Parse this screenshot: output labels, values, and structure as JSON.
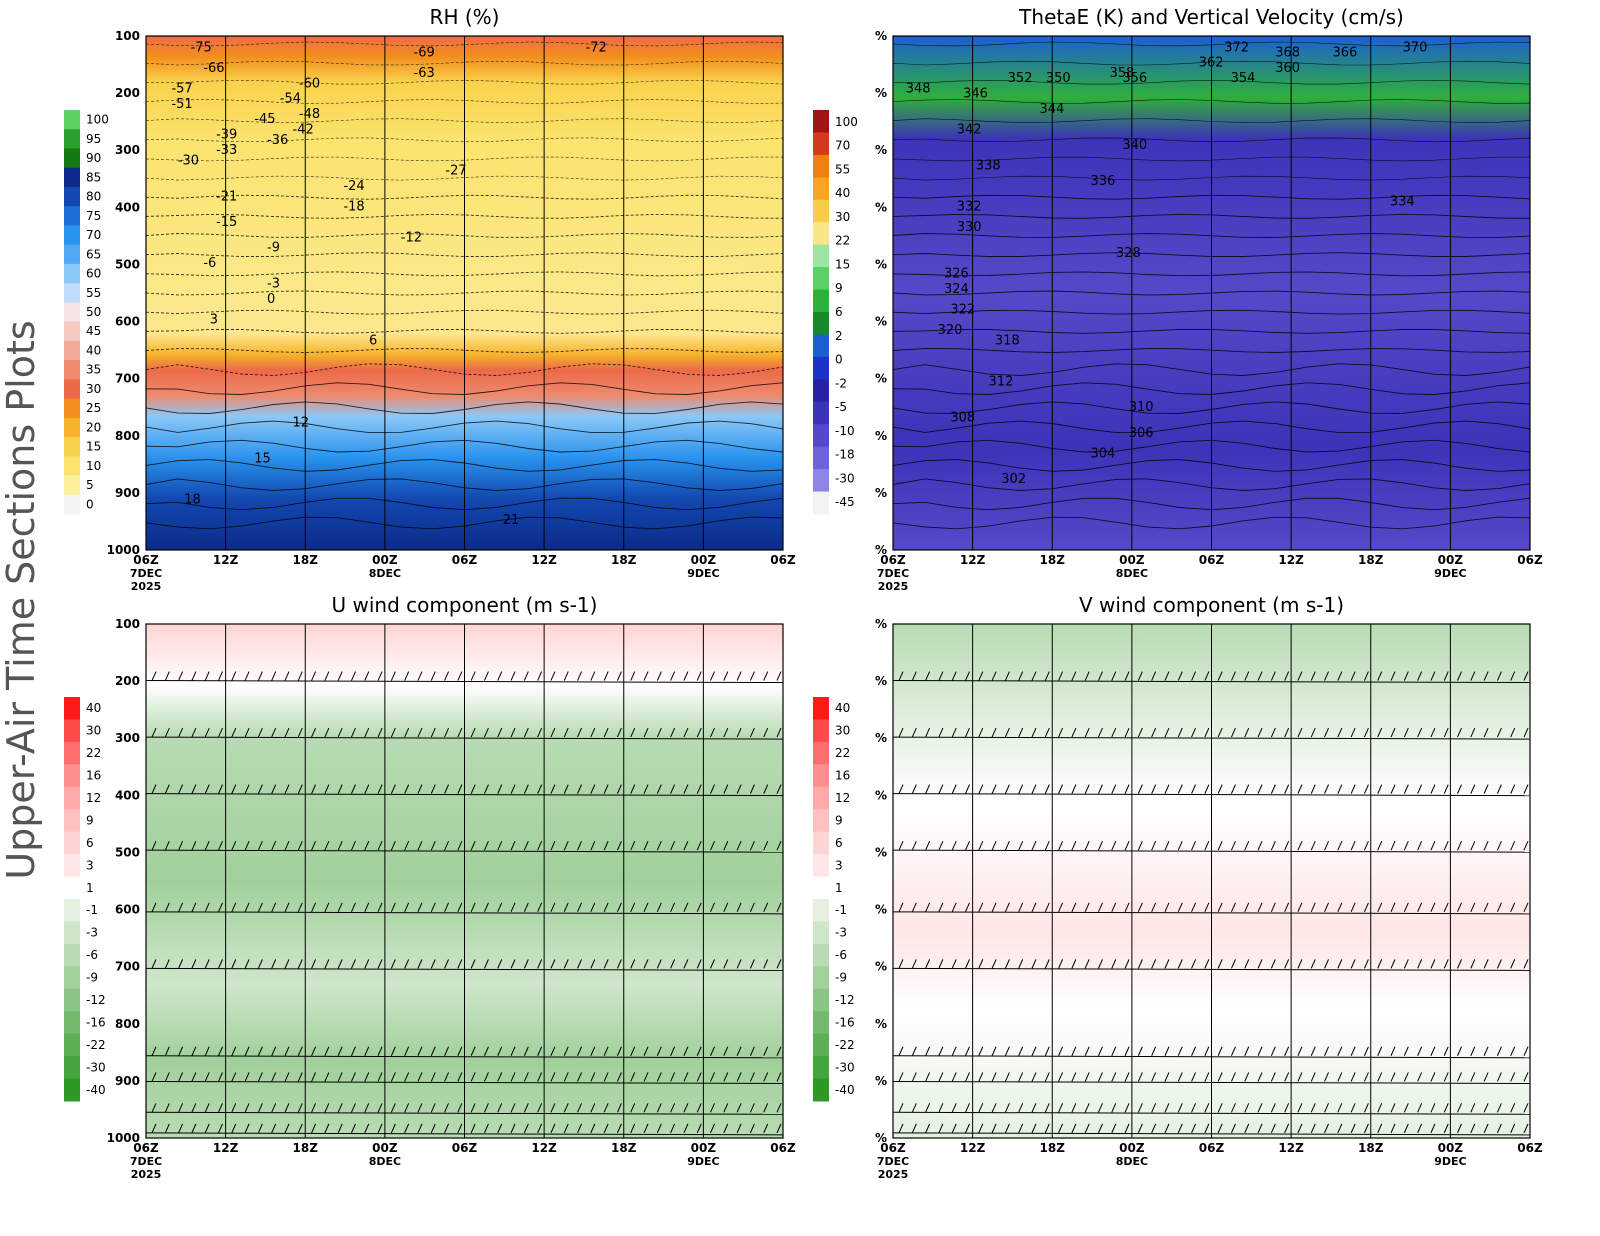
{
  "side_title": "Upper-Air Time Sections Plots",
  "chart_data": [
    {
      "type": "heatmap",
      "title": "RH (%)",
      "yticks": [
        "100",
        "200",
        "300",
        "400",
        "500",
        "600",
        "700",
        "800",
        "900",
        "1000"
      ],
      "x_ticks": [
        {
          "label": "06Z",
          "sub1": "7DEC",
          "sub2": "2025"
        },
        {
          "label": "12Z",
          "sub1": "",
          "sub2": ""
        },
        {
          "label": "18Z",
          "sub1": "",
          "sub2": ""
        },
        {
          "label": "00Z",
          "sub1": "8DEC",
          "sub2": ""
        },
        {
          "label": "06Z",
          "sub1": "",
          "sub2": ""
        },
        {
          "label": "12Z",
          "sub1": "",
          "sub2": ""
        },
        {
          "label": "18Z",
          "sub1": "",
          "sub2": ""
        },
        {
          "label": "00Z",
          "sub1": "9DEC",
          "sub2": ""
        },
        {
          "label": "06Z",
          "sub1": "",
          "sub2": ""
        }
      ],
      "colorbar_labels": [
        "100",
        "95",
        "90",
        "85",
        "80",
        "75",
        "70",
        "65",
        "60",
        "55",
        "50",
        "45",
        "40",
        "35",
        "30",
        "25",
        "20",
        "15",
        "10",
        "5",
        "0"
      ],
      "colorbar_colors": [
        "#5fd35f",
        "#2ca02c",
        "#137a13",
        "#0c2a8a",
        "#1248b0",
        "#1f6fd6",
        "#2a93ee",
        "#52aaf5",
        "#8cc8f7",
        "#bfdcf8",
        "#f6e3e3",
        "#f6c9c0",
        "#f2aa98",
        "#ee8a6e",
        "#ec6a48",
        "#f28f1c",
        "#f7b32b",
        "#f9d24c",
        "#fbe36d",
        "#fdf09a",
        "#f3f3f3"
      ],
      "contour_labels": [
        "-75",
        "-66",
        "-57",
        "-51",
        "-39",
        "-33",
        "-30",
        "-21",
        "-15",
        "-6",
        "3",
        "6",
        "12",
        "15",
        "18",
        "21",
        "-60",
        "-54",
        "-48",
        "-45",
        "-42",
        "-36",
        "-24",
        "-18",
        "-12",
        "-9",
        "-3",
        "0",
        "-69",
        "-63",
        "-27",
        "-72"
      ]
    },
    {
      "type": "heatmap",
      "title": "ThetaE (K) and Vertical Velocity (cm/s)",
      "yticks": [
        "%",
        "%",
        "%",
        "%",
        "%",
        "%",
        "%",
        "%",
        "%",
        "%"
      ],
      "x_ticks": [
        {
          "label": "06Z",
          "sub1": "7DEC",
          "sub2": "2025"
        },
        {
          "label": "12Z",
          "sub1": "",
          "sub2": ""
        },
        {
          "label": "18Z",
          "sub1": "",
          "sub2": ""
        },
        {
          "label": "00Z",
          "sub1": "8DEC",
          "sub2": ""
        },
        {
          "label": "06Z",
          "sub1": "",
          "sub2": ""
        },
        {
          "label": "12Z",
          "sub1": "",
          "sub2": ""
        },
        {
          "label": "18Z",
          "sub1": "",
          "sub2": ""
        },
        {
          "label": "00Z",
          "sub1": "9DEC",
          "sub2": ""
        },
        {
          "label": "06Z",
          "sub1": "",
          "sub2": ""
        }
      ],
      "colorbar_labels": [
        "100",
        "70",
        "55",
        "40",
        "30",
        "22",
        "15",
        "9",
        "6",
        "2",
        "0",
        "-2",
        "-5",
        "-10",
        "-18",
        "-30",
        "-45"
      ],
      "colorbar_colors": [
        "#a01414",
        "#d63a1e",
        "#f07f12",
        "#f6a623",
        "#f8cc4a",
        "#fae58a",
        "#9ce6a4",
        "#5ad066",
        "#2fb03a",
        "#168a2a",
        "#1d5fd2",
        "#1a33c8",
        "#2a22a6",
        "#3c33b8",
        "#5649c8",
        "#6d63d6",
        "#8e86e6",
        "#f3f3f3"
      ],
      "contour_labels": [
        "372",
        "370",
        "368",
        "366",
        "362",
        "360",
        "358",
        "356",
        "354",
        "352",
        "350",
        "348",
        "346",
        "344",
        "342",
        "340",
        "338",
        "336",
        "334",
        "332",
        "330",
        "328",
        "326",
        "324",
        "322",
        "320",
        "318",
        "312",
        "310",
        "308",
        "306",
        "304",
        "302"
      ]
    },
    {
      "type": "heatmap",
      "title": "U wind component (m s-1)",
      "yticks": [
        "100",
        "200",
        "300",
        "400",
        "500",
        "600",
        "700",
        "800",
        "900",
        "1000"
      ],
      "x_ticks": [
        {
          "label": "06Z",
          "sub1": "7DEC",
          "sub2": "2025"
        },
        {
          "label": "12Z",
          "sub1": "",
          "sub2": ""
        },
        {
          "label": "18Z",
          "sub1": "",
          "sub2": ""
        },
        {
          "label": "00Z",
          "sub1": "8DEC",
          "sub2": ""
        },
        {
          "label": "06Z",
          "sub1": "",
          "sub2": ""
        },
        {
          "label": "12Z",
          "sub1": "",
          "sub2": ""
        },
        {
          "label": "18Z",
          "sub1": "",
          "sub2": ""
        },
        {
          "label": "00Z",
          "sub1": "9DEC",
          "sub2": ""
        },
        {
          "label": "06Z",
          "sub1": "",
          "sub2": ""
        }
      ],
      "colorbar_labels": [
        "40",
        "30",
        "22",
        "16",
        "12",
        "9",
        "6",
        "3",
        "1",
        "-1",
        "-3",
        "-6",
        "-9",
        "-12",
        "-16",
        "-22",
        "-30",
        "-40"
      ],
      "colorbar_colors": [
        "#ff1a1a",
        "#ff4a4a",
        "#ff6e6e",
        "#ff8f8f",
        "#ffa9a9",
        "#ffc0c0",
        "#ffd4d4",
        "#ffe6e6",
        "#ffffff",
        "#e4f1e1",
        "#cfe6cb",
        "#b8dbb3",
        "#a1d09b",
        "#8ac583",
        "#73ba6c",
        "#5caf55",
        "#45a43e",
        "#2f9928"
      ]
    },
    {
      "type": "heatmap",
      "title": "V wind component (m s-1)",
      "yticks": [
        "%",
        "%",
        "%",
        "%",
        "%",
        "%",
        "%",
        "%",
        "%",
        "%"
      ],
      "x_ticks": [
        {
          "label": "06Z",
          "sub1": "7DEC",
          "sub2": "2025"
        },
        {
          "label": "12Z",
          "sub1": "",
          "sub2": ""
        },
        {
          "label": "18Z",
          "sub1": "",
          "sub2": ""
        },
        {
          "label": "00Z",
          "sub1": "8DEC",
          "sub2": ""
        },
        {
          "label": "06Z",
          "sub1": "",
          "sub2": ""
        },
        {
          "label": "12Z",
          "sub1": "",
          "sub2": ""
        },
        {
          "label": "18Z",
          "sub1": "",
          "sub2": ""
        },
        {
          "label": "00Z",
          "sub1": "9DEC",
          "sub2": ""
        },
        {
          "label": "06Z",
          "sub1": "",
          "sub2": ""
        }
      ],
      "colorbar_labels": [
        "40",
        "30",
        "22",
        "16",
        "12",
        "9",
        "6",
        "3",
        "1",
        "-1",
        "-3",
        "-6",
        "-9",
        "-12",
        "-16",
        "-22",
        "-30",
        "-40"
      ],
      "colorbar_colors": [
        "#ff1a1a",
        "#ff4a4a",
        "#ff6e6e",
        "#ff8f8f",
        "#ffa9a9",
        "#ffc0c0",
        "#ffd4d4",
        "#ffe6e6",
        "#ffffff",
        "#e4f1e1",
        "#cfe6cb",
        "#b8dbb3",
        "#a1d09b",
        "#8ac583",
        "#73ba6c",
        "#5caf55",
        "#45a43e",
        "#2f9928"
      ]
    }
  ]
}
